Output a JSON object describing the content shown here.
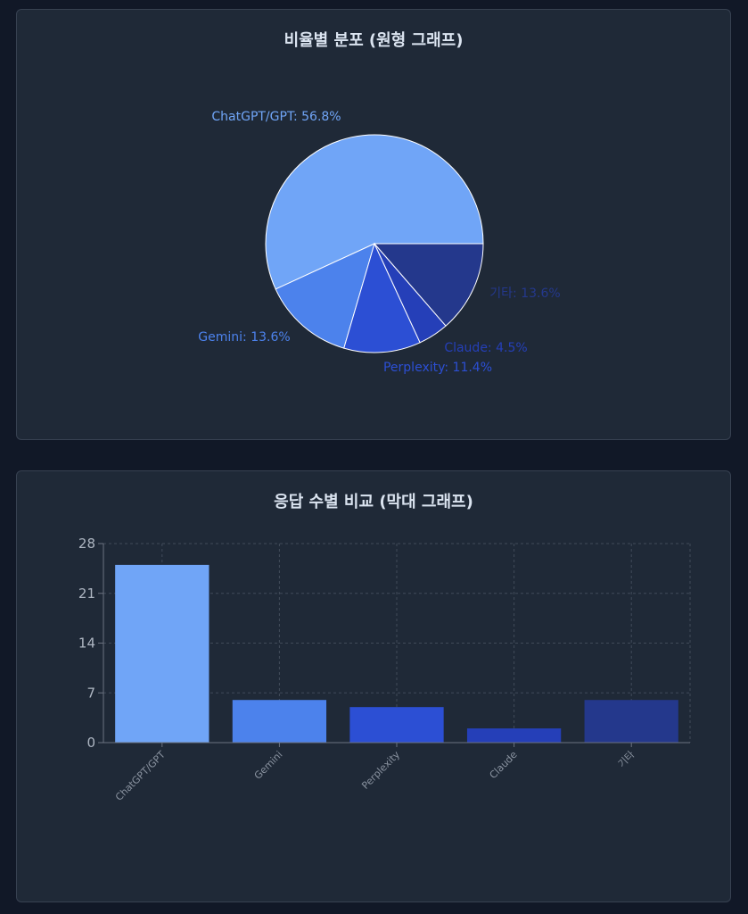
{
  "pie_card": {
    "title": "비율별 분포 (원형 그래프)"
  },
  "bar_card": {
    "title": "응답 수별 비교 (막대 그래프)"
  },
  "colors": [
    "#70a5f7",
    "#4c82ec",
    "#2c4fd4",
    "#253fb8",
    "#24388c"
  ],
  "chart_data": [
    {
      "type": "pie",
      "title": "비율별 분포 (원형 그래프)",
      "slices": [
        {
          "label": "ChatGPT/GPT: 56.8%",
          "name": "ChatGPT/GPT",
          "value": 56.8
        },
        {
          "label": "Gemini: 13.6%",
          "name": "Gemini",
          "value": 13.6
        },
        {
          "label": "Perplexity: 11.4%",
          "name": "Perplexity",
          "value": 11.4
        },
        {
          "label": "Claude: 4.5%",
          "name": "Claude",
          "value": 4.5
        },
        {
          "label": "기타: 13.6%",
          "name": "기타",
          "value": 13.6
        }
      ]
    },
    {
      "type": "bar",
      "title": "응답 수별 비교 (막대 그래프)",
      "categories": [
        "ChatGPT/GPT",
        "Gemini",
        "Perplexity",
        "Claude",
        "기타"
      ],
      "values": [
        25,
        6,
        5,
        2,
        6
      ],
      "ylim": [
        0,
        28
      ],
      "yticks": [
        0,
        7,
        14,
        21,
        28
      ],
      "grid": true
    }
  ]
}
